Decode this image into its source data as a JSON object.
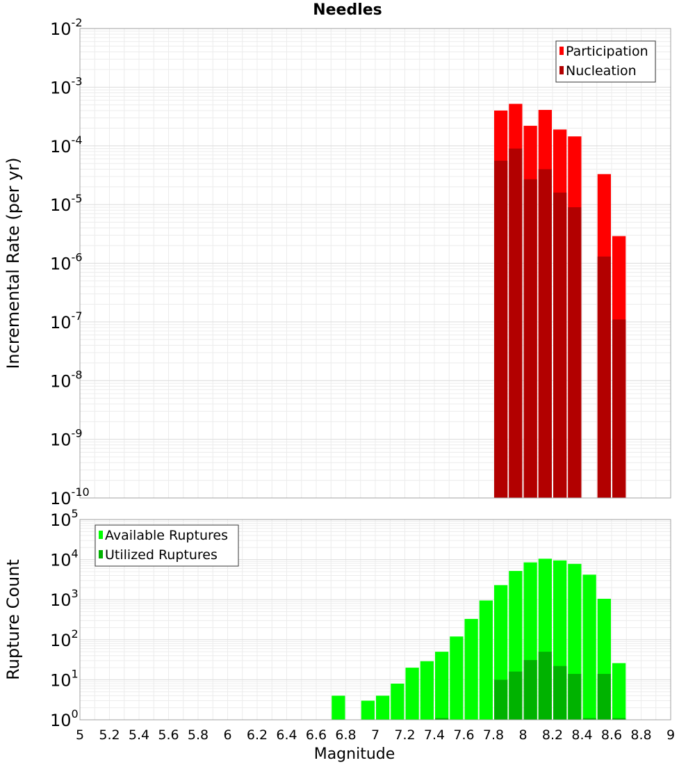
{
  "title": "Needles",
  "chart_data": [
    {
      "type": "bar",
      "scale": "log",
      "title": "Needles",
      "ylabel": "Incremental Rate (per yr)",
      "xlabel": "",
      "xlim": [
        5,
        9
      ],
      "ylim_exponents": [
        -10,
        -2
      ],
      "y_ticks": [
        {
          "base": "10",
          "exp": "-10"
        },
        {
          "base": "10",
          "exp": "-9"
        },
        {
          "base": "10",
          "exp": "-8"
        },
        {
          "base": "10",
          "exp": "-7"
        },
        {
          "base": "10",
          "exp": "-6"
        },
        {
          "base": "10",
          "exp": "-5"
        },
        {
          "base": "10",
          "exp": "-4"
        },
        {
          "base": "10",
          "exp": "-3"
        },
        {
          "base": "10",
          "exp": "-2"
        }
      ],
      "bin_width": 0.1,
      "legend": {
        "position": "top-right",
        "entries": [
          "Participation",
          "Nucleation"
        ]
      },
      "colors": {
        "Participation": "#ff0000",
        "Nucleation": "#b20000"
      },
      "categories": [
        7.85,
        7.95,
        8.05,
        8.15,
        8.25,
        8.35,
        8.55,
        8.65
      ],
      "series": [
        {
          "name": "Participation",
          "values": [
            0.0004,
            0.00052,
            0.00022,
            0.00041,
            0.00019,
            0.000145,
            3.3e-05,
            2.9e-06
          ]
        },
        {
          "name": "Nucleation",
          "values": [
            5.6e-05,
            9e-05,
            2.7e-05,
            4e-05,
            1.6e-05,
            9e-06,
            1.3e-06,
            1.1e-07
          ]
        }
      ]
    },
    {
      "type": "bar",
      "scale": "log",
      "title": "",
      "ylabel": "Rupture Count",
      "xlabel": "Magnitude",
      "xlim": [
        5,
        9
      ],
      "ylim_exponents": [
        0,
        5
      ],
      "y_ticks": [
        {
          "base": "10",
          "exp": "0"
        },
        {
          "base": "10",
          "exp": "1"
        },
        {
          "base": "10",
          "exp": "2"
        },
        {
          "base": "10",
          "exp": "3"
        },
        {
          "base": "10",
          "exp": "4"
        },
        {
          "base": "10",
          "exp": "5"
        }
      ],
      "x_ticks": [
        "5",
        "5.2",
        "5.4",
        "5.6",
        "5.8",
        "6",
        "6.2",
        "6.4",
        "6.6",
        "6.8",
        "7",
        "7.2",
        "7.4",
        "7.6",
        "7.8",
        "8",
        "8.2",
        "8.4",
        "8.6",
        "8.8",
        "9"
      ],
      "bin_width": 0.1,
      "legend": {
        "position": "top-left",
        "entries": [
          "Available Ruptures",
          "Utilized Ruptures"
        ]
      },
      "colors": {
        "Available Ruptures": "#00ff00",
        "Utilized Ruptures": "#00b200"
      },
      "categories": [
        6.75,
        6.95,
        7.05,
        7.15,
        7.25,
        7.35,
        7.45,
        7.55,
        7.65,
        7.75,
        7.85,
        7.95,
        8.05,
        8.15,
        8.25,
        8.35,
        8.45,
        8.55,
        8.65
      ],
      "series": [
        {
          "name": "Available Ruptures",
          "values": [
            4,
            3,
            4,
            8,
            20,
            29,
            50,
            120,
            330,
            950,
            2300,
            5200,
            8500,
            10500,
            9500,
            7800,
            4200,
            1050,
            26
          ]
        },
        {
          "name": "Utilized Ruptures",
          "values": [
            0,
            0,
            0,
            0,
            0,
            0,
            1.1,
            0,
            0,
            0,
            10,
            16,
            31,
            50,
            22,
            14,
            1.1,
            14,
            1.1
          ]
        }
      ]
    }
  ]
}
